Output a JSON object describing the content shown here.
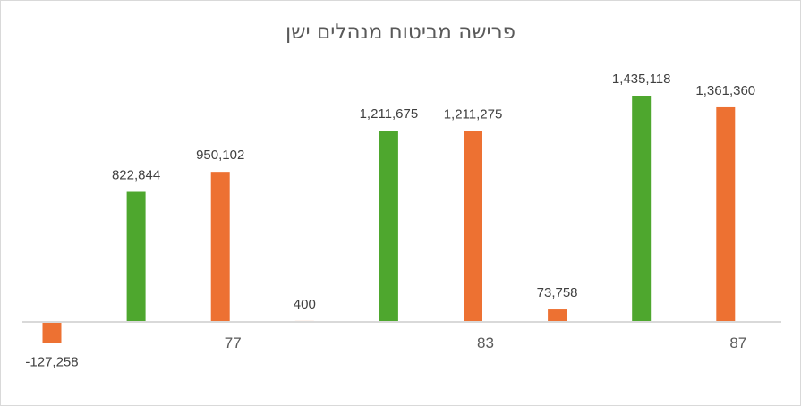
{
  "chart_data": {
    "type": "bar",
    "title": "פרישה מביטוח מנהלים ישן",
    "xlabel": "",
    "ylabel": "",
    "grid": false,
    "legend": "none",
    "x_tick_labels": [
      {
        "index": 2,
        "label": "77"
      },
      {
        "index": 5,
        "label": "83"
      },
      {
        "index": 8,
        "label": "87"
      }
    ],
    "bars": [
      {
        "index": 0,
        "series": "orange",
        "value": -127258,
        "label": "-127,258"
      },
      {
        "index": 1,
        "series": "green",
        "value": 822844,
        "label": "822,844"
      },
      {
        "index": 2,
        "series": "orange",
        "value": 950102,
        "label": "950,102"
      },
      {
        "index": 3,
        "series": "orange",
        "value": 400,
        "label": "400"
      },
      {
        "index": 4,
        "series": "green",
        "value": 1211675,
        "label": "1,211,675"
      },
      {
        "index": 5,
        "series": "orange",
        "value": 1211275,
        "label": "1,211,275"
      },
      {
        "index": 6,
        "series": "orange",
        "value": 73758,
        "label": "73,758"
      },
      {
        "index": 7,
        "series": "green",
        "value": 1435118,
        "label": "1,435,118"
      },
      {
        "index": 8,
        "series": "orange",
        "value": 1361360,
        "label": "1,361,360"
      }
    ],
    "colors": {
      "green": "#4ea72e",
      "orange": "#ed7132",
      "axis": "#d9d9d9"
    },
    "ylim": [
      -200000,
      1500000
    ]
  }
}
